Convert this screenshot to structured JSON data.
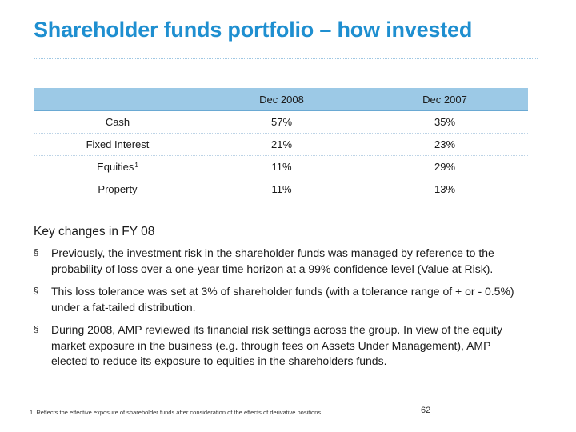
{
  "title": "Shareholder funds portfolio – how invested",
  "table": {
    "headers": [
      "",
      "Dec 2008",
      "Dec 2007"
    ],
    "rows": [
      {
        "label": "Cash",
        "sup": "",
        "dec2008": "57%",
        "dec2007": "35%"
      },
      {
        "label": "Fixed Interest",
        "sup": "",
        "dec2008": "21%",
        "dec2007": "23%"
      },
      {
        "label": "Equities",
        "sup": "1",
        "dec2008": "11%",
        "dec2007": "29%"
      },
      {
        "label": "Property",
        "sup": "",
        "dec2008": "11%",
        "dec2007": "13%"
      }
    ]
  },
  "key_changes": {
    "heading": "Key changes in FY 08",
    "bullet_symbol": "§",
    "bullets": [
      "Previously, the investment risk in the shareholder funds was managed by reference to the probability of loss over a one-year time horizon at a 99% confidence level (Value at Risk).",
      "This loss tolerance was set at 3% of shareholder funds (with a tolerance range of + or - 0.5%) under a fat-tailed distribution.",
      "During 2008, AMP reviewed its financial risk settings across the group. In view of the equity market exposure in the business (e.g. through fees on Assets Under Management), AMP elected to reduce its exposure to equities in the shareholders funds."
    ]
  },
  "footnote": "1. Reflects the effective exposure of shareholder funds after consideration of the effects of derivative positions",
  "page_number": "62"
}
